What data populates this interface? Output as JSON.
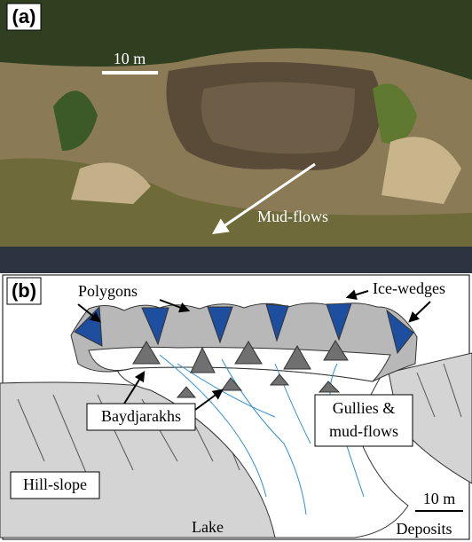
{
  "panel_a": {
    "label": "(a)",
    "scale_bar": "10 m",
    "annotation": "Mud-flows"
  },
  "panel_b": {
    "label": "(b)",
    "labels": {
      "polygons": "Polygons",
      "ice_wedges": "Ice-wedges",
      "baydjarakhs": "Baydjarakhs",
      "gullies": [
        "Gullies &",
        "mud-flows"
      ],
      "hill_slope": "Hill-slope",
      "lake": "Lake",
      "scale_bar": "10 m",
      "deposits": "Deposits"
    }
  }
}
